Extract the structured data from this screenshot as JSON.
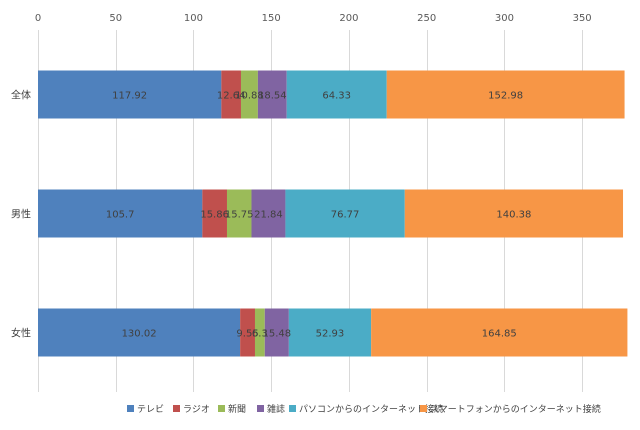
{
  "chart_data": {
    "type": "bar",
    "orientation": "horizontal",
    "stacked": true,
    "categories": [
      "全体",
      "男性",
      "女性"
    ],
    "series": [
      {
        "name": "テレビ",
        "color": "#4f81bd",
        "values": [
          117.92,
          105.7,
          130.02
        ]
      },
      {
        "name": "ラジオ",
        "color": "#c0504d",
        "values": [
          12.64,
          15.86,
          9.55
        ]
      },
      {
        "name": "新聞",
        "color": "#9bbb59",
        "values": [
          10.88,
          15.75,
          6.3
        ]
      },
      {
        "name": "雑誌",
        "color": "#8064a2",
        "values": [
          18.54,
          21.84,
          15.48
        ]
      },
      {
        "name": "パソコンからのインターネット接続",
        "color": "#4bacc6",
        "values": [
          64.33,
          76.77,
          52.93
        ]
      },
      {
        "name": "スマートフォンからのインターネット接続",
        "color": "#f79646",
        "values": [
          152.98,
          140.38,
          164.85
        ]
      }
    ],
    "data_labels": [
      [
        "117.92",
        "105.7",
        "130.02"
      ],
      [
        "12.64",
        "15.86",
        "9.55"
      ],
      [
        "10.88",
        "15.75",
        "6.3"
      ],
      [
        "18.54",
        "21.84",
        "15.48"
      ],
      [
        "64.33",
        "76.77",
        "52.93"
      ],
      [
        "152.98",
        "140.38",
        "164.85"
      ]
    ],
    "x_ticks": [
      0,
      50,
      100,
      150,
      200,
      250,
      300,
      350
    ],
    "xlim": [
      0,
      375
    ],
    "x_axis_position": "top",
    "grid": "vertical",
    "legend_position": "bottom",
    "title": "",
    "xlabel": "",
    "ylabel": ""
  }
}
